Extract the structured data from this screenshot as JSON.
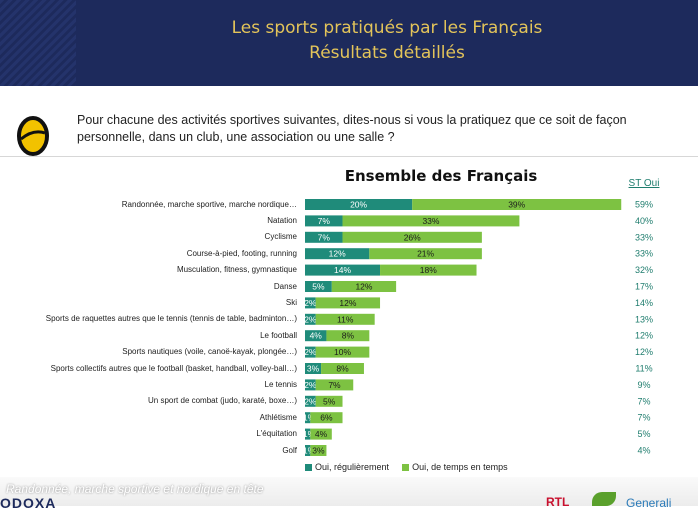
{
  "header": {
    "title_line1": "Les sports pratiqués par les Français",
    "title_line2": "Résultats détaillés"
  },
  "question": "Pour chacune des activités sportives suivantes, dites-nous si vous la pratiquez que ce soit de façon personnelle, dans un club, une association ou une salle ?",
  "footer": {
    "caption": "Randonnée, marche sportive et nordique en tête",
    "brand": "ODOXA",
    "partner1": "RTL",
    "partner2": "Generali"
  },
  "colors": {
    "regular": "#1f8b7a",
    "sometimes": "#7dc242",
    "header_bg": "#1d2a5c",
    "header_text": "#e3c45a",
    "st_text": "#1f7d6e"
  },
  "chart_data": {
    "type": "bar",
    "orientation": "horizontal",
    "stacked": true,
    "title": "Ensemble des Français",
    "total_label": "ST Oui",
    "categories": [
      "Randonnée, marche sportive, marche nordique…",
      "Natation",
      "Cyclisme",
      "Course-à-pied, footing, running",
      "Musculation, fitness, gymnastique",
      "Danse",
      "Ski",
      "Sports de raquettes autres que le tennis (tennis de table, badminton…)",
      "Le football",
      "Sports nautiques (voile, canoë-kayak, plongée…)",
      "Sports collectifs autres que le football (basket, handball, volley-ball…)",
      "Le tennis",
      "Un sport de combat (judo, karaté, boxe…)",
      "Athlétisme",
      "L'équitation",
      "Golf"
    ],
    "series": [
      {
        "name": "Oui, régulièrement",
        "values": [
          20,
          7,
          7,
          12,
          14,
          5,
          2,
          2,
          4,
          2,
          3,
          2,
          2,
          1,
          1,
          1
        ]
      },
      {
        "name": "Oui, de temps en temps",
        "values": [
          39,
          33,
          26,
          21,
          18,
          12,
          12,
          11,
          8,
          10,
          8,
          7,
          5,
          6,
          4,
          3
        ]
      }
    ],
    "totals": [
      59,
      40,
      33,
      33,
      32,
      17,
      14,
      13,
      12,
      12,
      11,
      9,
      7,
      7,
      5,
      4
    ],
    "value_suffix": "%",
    "legend": "bottom"
  }
}
